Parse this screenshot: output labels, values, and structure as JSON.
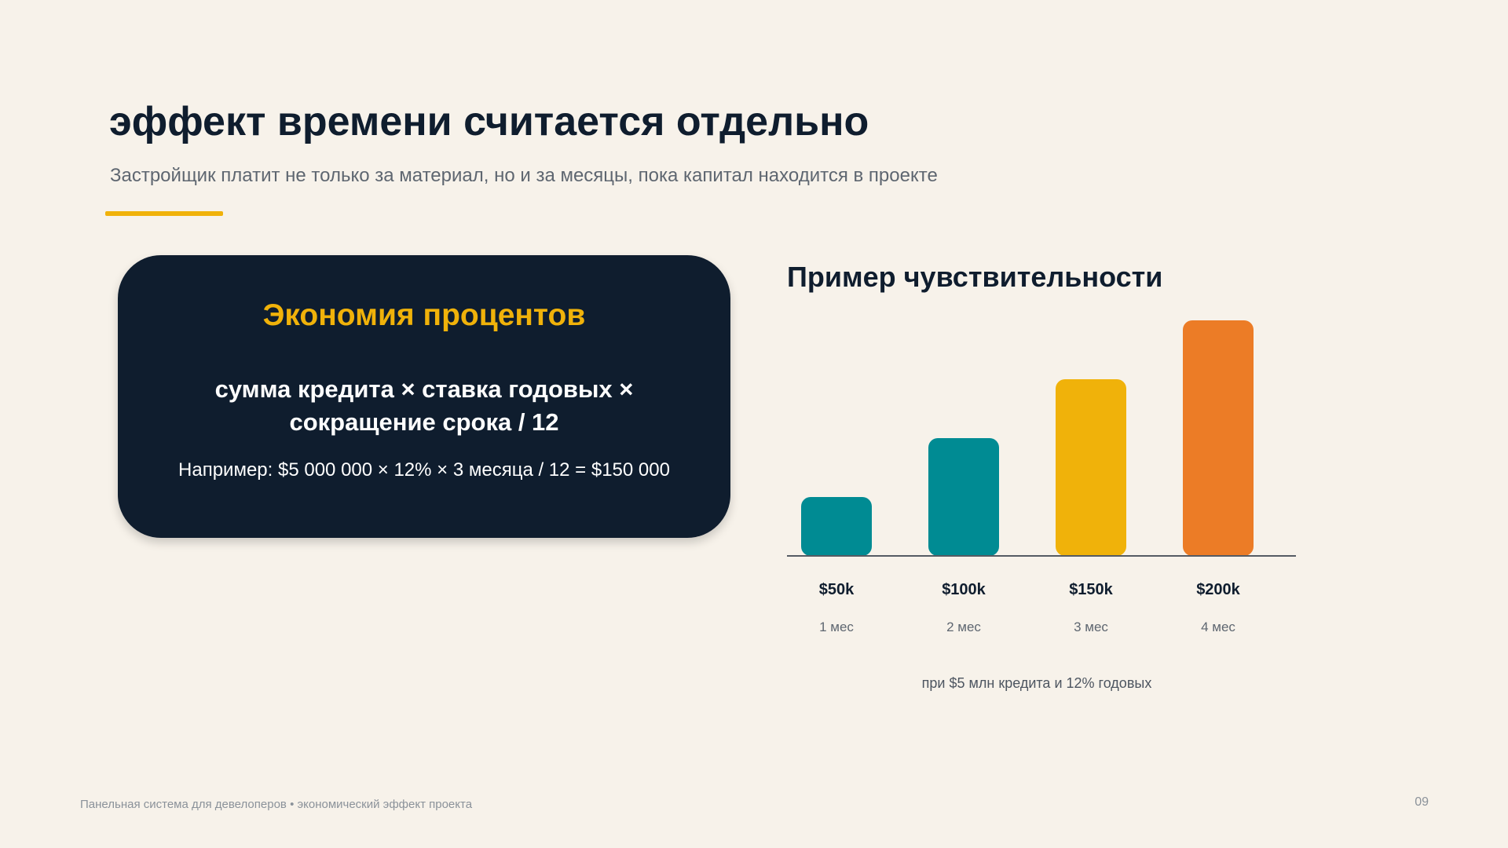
{
  "header": {
    "title": "эффект времени считается отдельно",
    "subtitle": "Застройщик платит не только за материал, но и за месяцы, пока капитал находится в проекте"
  },
  "formula_card": {
    "heading": "Экономия процентов",
    "formula_line1": "сумма кредита × ставка годовых ×",
    "formula_line2": "сокращение срока / 12",
    "example": "Например: $5 000 000 × 12% × 3 месяца / 12 = $150 000"
  },
  "chart_section": {
    "title": "Пример чувствительности",
    "note": "при $5 млн кредита и 12% годовых"
  },
  "chart_data": {
    "type": "bar",
    "categories": [
      "1 мес",
      "2 мес",
      "3 мес",
      "4 мес"
    ],
    "value_labels": [
      "$50k",
      "$100k",
      "$150k",
      "$200k"
    ],
    "values": [
      50,
      100,
      150,
      200
    ],
    "colors": [
      "#008b93",
      "#008b93",
      "#f0b20a",
      "#ec7c26"
    ],
    "ylim": [
      0,
      200
    ],
    "axis_color": "#555b63",
    "grid": false
  },
  "footer": {
    "text": "Панельная система для девелоперов • экономический эффект проекта",
    "page_number": "09"
  }
}
